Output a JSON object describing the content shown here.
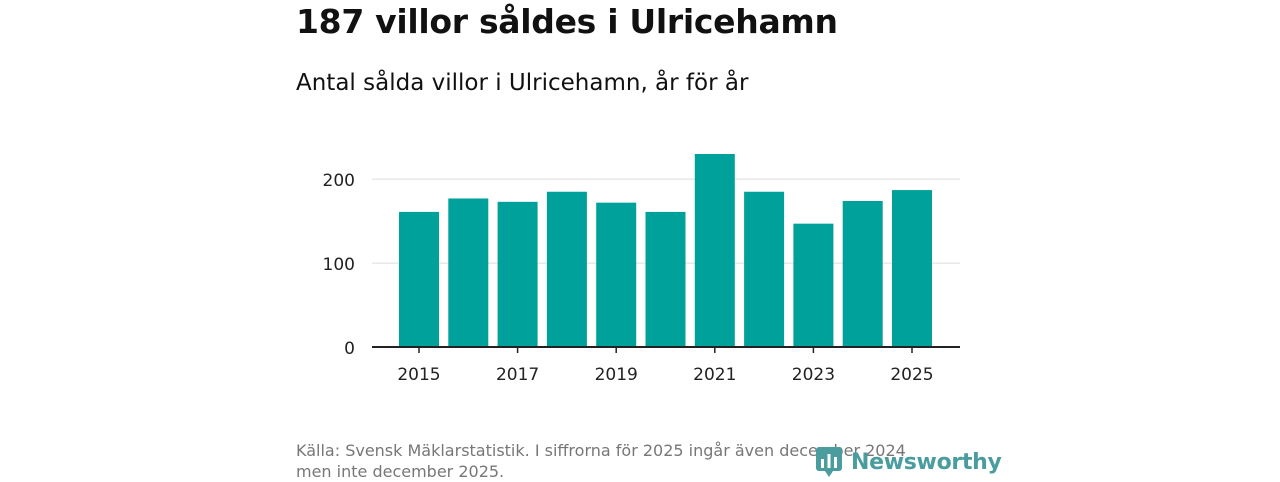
{
  "title": "187 villor såldes i Ulricehamn",
  "subtitle": "Antal sålda villor i Ulricehamn, år för år",
  "footer": {
    "line1": "Källa: Svensk Mäklarstatistik. I siffrorna för 2025 ingår även december 2024",
    "line2": "men inte december 2025."
  },
  "logo": {
    "text": "Newsworthy",
    "icon": "bar-chart-logo-icon"
  },
  "colors": {
    "bar": "#00a19a",
    "grid": "#dddddd",
    "axis": "#222222",
    "brand": "#4a9c9f"
  },
  "chart_data": {
    "type": "bar",
    "title": "Antal sålda villor i Ulricehamn, år för år",
    "xlabel": "",
    "ylabel": "",
    "categories": [
      2015,
      2016,
      2017,
      2018,
      2019,
      2020,
      2021,
      2022,
      2023,
      2024,
      2025
    ],
    "values": [
      161,
      177,
      173,
      185,
      172,
      161,
      230,
      185,
      147,
      174,
      187
    ],
    "ylim": [
      0,
      230
    ],
    "yticks": [
      0,
      100,
      200
    ],
    "xticks": [
      2015,
      2017,
      2019,
      2021,
      2023,
      2025
    ],
    "grid": true
  }
}
